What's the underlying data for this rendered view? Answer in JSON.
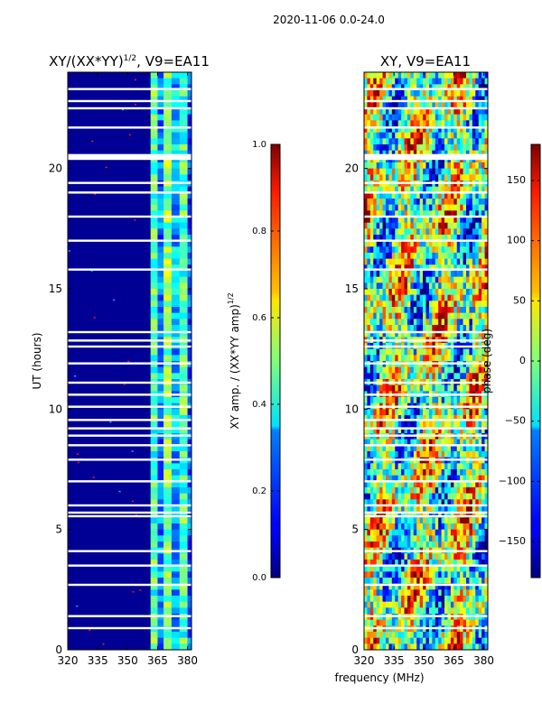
{
  "figure_title": "2020-11-06 0.0-24.0",
  "shared_xlabel": "frequency (MHz)",
  "chart_data": [
    {
      "type": "heatmap",
      "title_main": "XY/(XX*YY)",
      "title_sup": "1/2",
      "title_rest": ", V9=EA11",
      "xlabel": "",
      "ylabel": "UT (hours)",
      "xlim": [
        320,
        382
      ],
      "ylim": [
        0,
        24
      ],
      "xticks": [
        320,
        335,
        350,
        365,
        380
      ],
      "yticks": [
        0,
        5,
        10,
        15,
        20
      ],
      "colorbar": {
        "label_main": "XY amp. / (XX*YY amp)",
        "label_sup": "1/2",
        "range": [
          0.0,
          1.0
        ],
        "ticks": [
          "0.0",
          "0.2",
          "0.4",
          "0.6",
          "0.8",
          "1.0"
        ],
        "tick_values": [
          0.0,
          0.2,
          0.4,
          0.6,
          0.8,
          1.0
        ]
      },
      "description": "Mostly low amplitude (~0.0) below 362 MHz; elevated amplitude (~0.3-0.5) in bands 362-382 MHz",
      "bands": [
        {
          "from": 320,
          "to": 361.5,
          "value": 0.02
        },
        {
          "from": 361.5,
          "to": 365,
          "value": 0.45
        },
        {
          "from": 365,
          "to": 368,
          "value": 0.25
        },
        {
          "from": 368,
          "to": 372,
          "value": 0.5
        },
        {
          "from": 372,
          "to": 376,
          "value": 0.3
        },
        {
          "from": 376,
          "to": 380,
          "value": 0.45
        },
        {
          "from": 380,
          "to": 382,
          "value": 0.2
        }
      ]
    },
    {
      "type": "heatmap",
      "title": "XY, V9=EA11",
      "xlabel": "",
      "ylabel": "",
      "xlim": [
        320,
        382
      ],
      "ylim": [
        0,
        24
      ],
      "xticks": [
        320,
        335,
        350,
        365,
        380
      ],
      "yticks": [
        0,
        5,
        10,
        15,
        20
      ],
      "colorbar": {
        "label": "phase (deg)",
        "range": [
          -180,
          180
        ],
        "ticks": [
          "−150",
          "−100",
          "−50",
          "0",
          "50",
          "100",
          "150"
        ],
        "tick_values": [
          -150,
          -100,
          -50,
          0,
          50,
          100,
          150
        ]
      },
      "description": "Noisy phase map spanning the full -180 to 180 deg range across all frequencies and times"
    }
  ],
  "flagged_gaps_hours": [
    0.9,
    1.4,
    2.7,
    3.5,
    4.1,
    5.55,
    5.7,
    6.0,
    7.0,
    7.9,
    8.5,
    8.9,
    9.2,
    9.55,
    10.1,
    10.6,
    11.1,
    11.9,
    12.6,
    12.85,
    13.2,
    15.8,
    17.0,
    18.0,
    19.0,
    19.4,
    20.4,
    21.7,
    22.5,
    22.8,
    23.3
  ]
}
